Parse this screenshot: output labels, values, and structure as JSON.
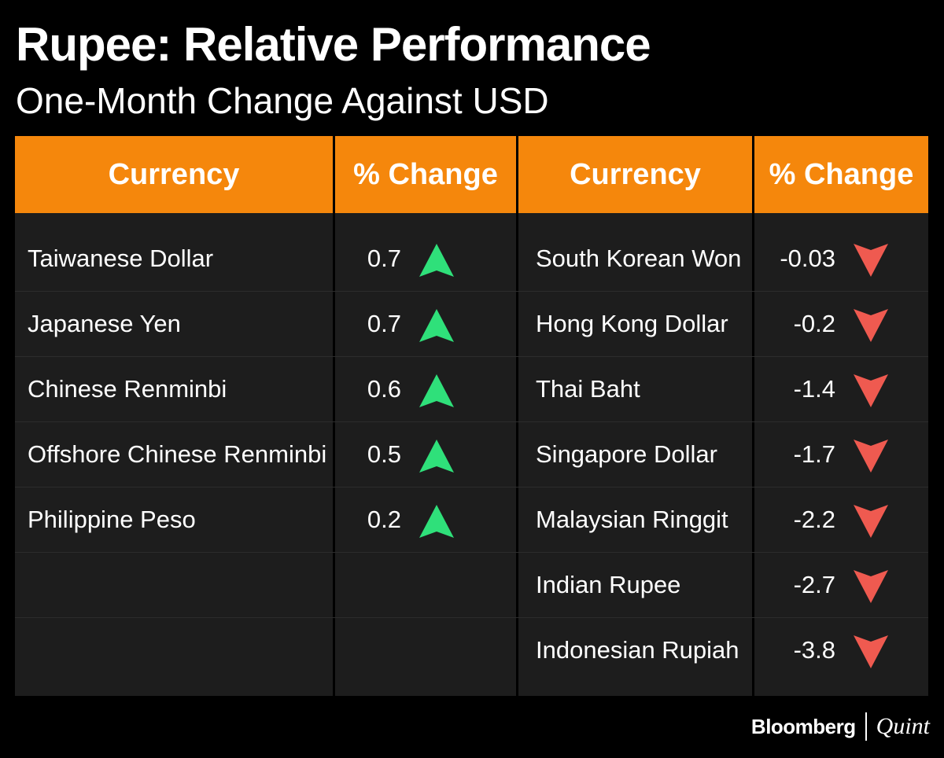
{
  "title": "Rupee: Relative Performance",
  "subtitle": "One-Month Change Against USD",
  "headers": {
    "currency_left": "Currency",
    "change_left": "% Change",
    "currency_right": "Currency",
    "change_right": "% Change"
  },
  "colors": {
    "header": "#f5870c",
    "up": "#2fe07a",
    "down": "#ef5a50",
    "cell": "#1d1d1d"
  },
  "chart_data": {
    "type": "table",
    "title": "Rupee: Relative Performance",
    "subtitle": "One-Month Change Against USD",
    "gainers": [
      {
        "currency": "Taiwanese Dollar",
        "change": "0.7",
        "direction": "up"
      },
      {
        "currency": "Japanese Yen",
        "change": "0.7",
        "direction": "up"
      },
      {
        "currency": "Chinese Renminbi",
        "change": "0.6",
        "direction": "up"
      },
      {
        "currency": "Offshore Chinese Renminbi",
        "change": "0.5",
        "direction": "up"
      },
      {
        "currency": "Philippine Peso",
        "change": "0.2",
        "direction": "up"
      }
    ],
    "decliners": [
      {
        "currency": "South Korean Won",
        "change": "-0.03",
        "direction": "down"
      },
      {
        "currency": "Hong Kong Dollar",
        "change": "-0.2",
        "direction": "down"
      },
      {
        "currency": "Thai Baht",
        "change": "-1.4",
        "direction": "down"
      },
      {
        "currency": "Singapore Dollar",
        "change": "-1.7",
        "direction": "down"
      },
      {
        "currency": "Malaysian Ringgit",
        "change": "-2.2",
        "direction": "down"
      },
      {
        "currency": "Indian Rupee",
        "change": "-2.7",
        "direction": "down"
      },
      {
        "currency": "Indonesian Rupiah",
        "change": "-3.8",
        "direction": "down"
      }
    ]
  },
  "footer": {
    "brand_primary": "Bloomberg",
    "brand_secondary": "Quint"
  }
}
